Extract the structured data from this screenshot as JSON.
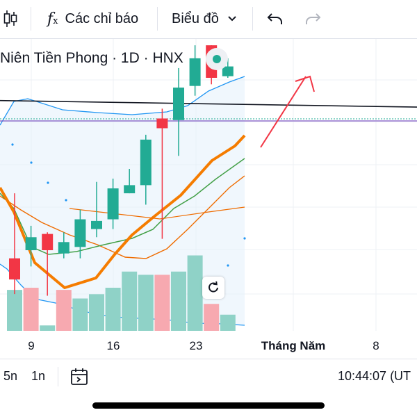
{
  "toolbar": {
    "indicators_label": "Các chỉ báo",
    "chart_type_label": "Biểu đồ",
    "icons": [
      "candles-icon",
      "fx-icon",
      "chevron-down-icon",
      "undo-icon",
      "redo-icon"
    ]
  },
  "symbol": {
    "title": "Niên Tiền Phong · 1D · HNX",
    "status_color": "#22ab94"
  },
  "x_axis": {
    "ticks": [
      "9",
      "16",
      "23",
      "Tháng Năm",
      "8"
    ]
  },
  "bottom_bar": {
    "range_5n": "5n",
    "range_1n": "1n",
    "time": "10:44:07 (UT"
  },
  "colors": {
    "up": "#22ab94",
    "down": "#f23645",
    "vol_up": "#8fd2c7",
    "vol_down": "#f7a9b0",
    "bollinger": "#2196f3",
    "ma_fast": "#f57c00",
    "ma_mid": "#43a047",
    "ma_slow": "#ef6c00",
    "trend": "#f23645"
  },
  "chart_data": {
    "type": "candlestick",
    "candles": [
      {
        "o": 62.5,
        "h": 66.5,
        "l": 60.3,
        "c": 61.2
      },
      {
        "o": 63.0,
        "h": 64.5,
        "l": 62.0,
        "c": 63.8
      },
      {
        "o": 64.0,
        "h": 64.1,
        "l": 60.2,
        "c": 63.0
      },
      {
        "o": 62.8,
        "h": 64.1,
        "l": 62.5,
        "c": 63.5
      },
      {
        "o": 63.2,
        "h": 65.5,
        "l": 62.5,
        "c": 64.9
      },
      {
        "o": 64.3,
        "h": 67.2,
        "l": 63.8,
        "c": 64.8
      },
      {
        "o": 64.9,
        "h": 67.4,
        "l": 64.3,
        "c": 66.8
      },
      {
        "o": 66.5,
        "h": 68.0,
        "l": 66.5,
        "c": 67.0
      },
      {
        "o": 67.0,
        "h": 70.1,
        "l": 65.8,
        "c": 69.8
      },
      {
        "o": 71.1,
        "h": 71.7,
        "l": 63.7,
        "c": 70.5
      },
      {
        "o": 71.0,
        "h": 74.2,
        "l": 68.8,
        "c": 73.0
      },
      {
        "o": 73.1,
        "h": 75.6,
        "l": 72.5,
        "c": 74.8
      },
      {
        "o": 75.6,
        "h": 75.6,
        "l": 73.2,
        "c": 73.6
      },
      {
        "o": 73.7,
        "h": 74.8,
        "l": 73.6,
        "c": 74.3
      }
    ],
    "volume_up": [
      true,
      false,
      true,
      false,
      true,
      true,
      true,
      true,
      true,
      false,
      true,
      true,
      false,
      true
    ],
    "volumes": [
      0.38,
      0.4,
      0.05,
      0.38,
      0.3,
      0.34,
      0.4,
      0.55,
      0.52,
      0.52,
      0.55,
      0.7,
      0.25,
      0.15
    ],
    "trend_line": [
      {
        "x": 0,
        "y": 72.2
      },
      {
        "x": 18,
        "y": 71.8
      }
    ]
  }
}
